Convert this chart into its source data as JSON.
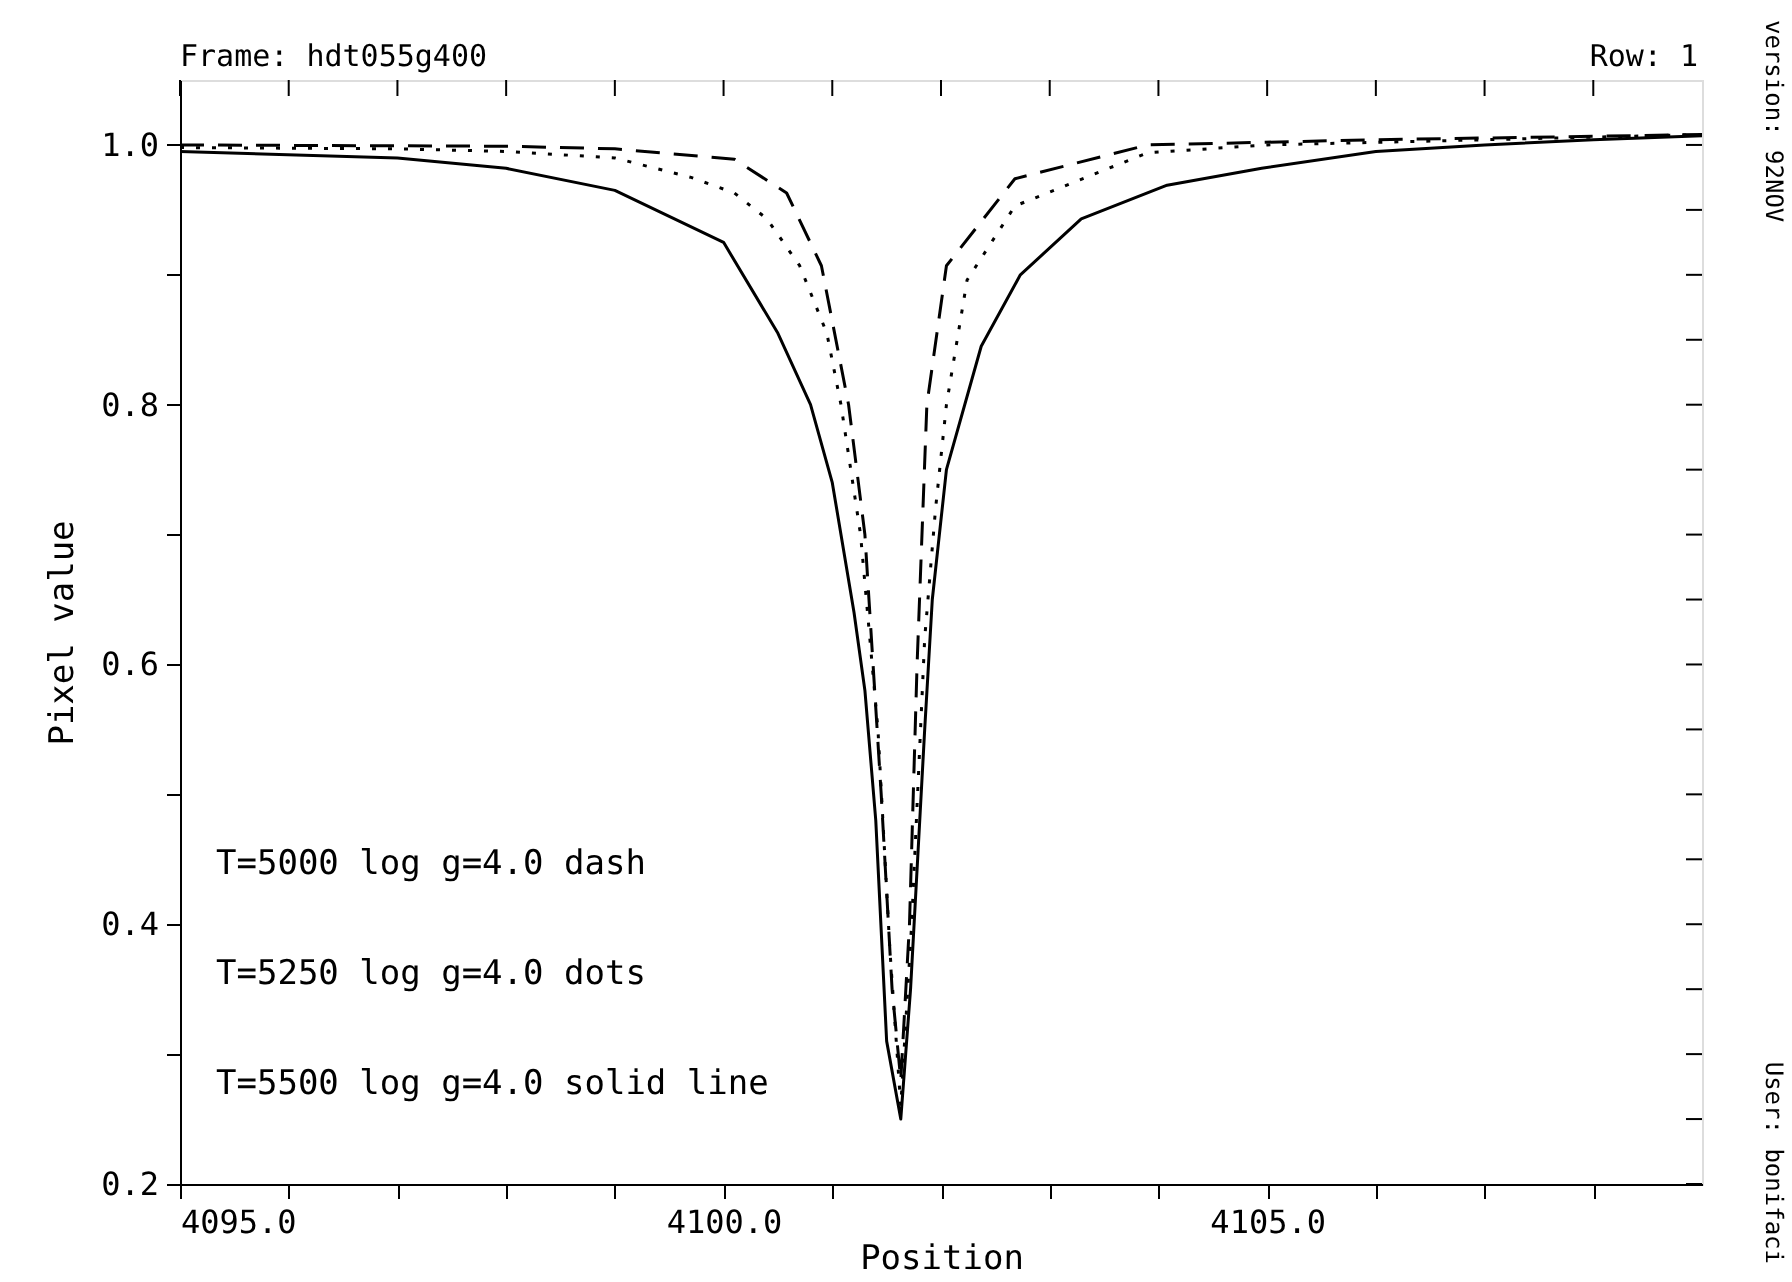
{
  "chart_data": {
    "type": "line",
    "title": "Frame: hdt055g400",
    "xlabel": "Position",
    "ylabel": "Pixel value",
    "xlim": [
      4095,
      4109
    ],
    "ylim": [
      0.2,
      1.05
    ],
    "xticks": [
      {
        "value": 4095,
        "label": "4095.0"
      },
      {
        "value": 4096,
        "label": null
      },
      {
        "value": 4097,
        "label": null
      },
      {
        "value": 4098,
        "label": null
      },
      {
        "value": 4099,
        "label": null
      },
      {
        "value": 4100,
        "label": "4100.0"
      },
      {
        "value": 4101,
        "label": null
      },
      {
        "value": 4102,
        "label": null
      },
      {
        "value": 4103,
        "label": null
      },
      {
        "value": 4104,
        "label": null
      },
      {
        "value": 4105,
        "label": "4105.0"
      },
      {
        "value": 4106,
        "label": null
      },
      {
        "value": 4107,
        "label": null
      },
      {
        "value": 4108,
        "label": null
      }
    ],
    "yticks": [
      {
        "value": 0.2,
        "label": "0.2"
      },
      {
        "value": 0.25,
        "label": null
      },
      {
        "value": 0.3,
        "label": null
      },
      {
        "value": 0.35,
        "label": null
      },
      {
        "value": 0.4,
        "label": "0.4"
      },
      {
        "value": 0.45,
        "label": null
      },
      {
        "value": 0.5,
        "label": null
      },
      {
        "value": 0.55,
        "label": null
      },
      {
        "value": 0.6,
        "label": "0.6"
      },
      {
        "value": 0.65,
        "label": null
      },
      {
        "value": 0.7,
        "label": null
      },
      {
        "value": 0.75,
        "label": null
      },
      {
        "value": 0.8,
        "label": "0.8"
      },
      {
        "value": 0.85,
        "label": null
      },
      {
        "value": 0.9,
        "label": null
      },
      {
        "value": 0.95,
        "label": null
      },
      {
        "value": 1.0,
        "label": "1.0"
      }
    ],
    "grid": false,
    "series": [
      {
        "color": "#000000",
        "line_style": "dashed",
        "x": [
          4095,
          4098,
          4099,
          4100.1,
          4100.58,
          4100.9,
          4101.15,
          4101.3,
          4101.45,
          4101.55,
          4101.63,
          4101.71,
          4101.78,
          4101.87,
          4102.05,
          4102.68,
          4103.9,
          4106,
          4109
        ],
        "values": [
          1.0,
          0.999,
          0.997,
          0.989,
          0.963,
          0.907,
          0.8,
          0.7,
          0.5,
          0.35,
          0.28,
          0.4,
          0.6,
          0.8,
          0.907,
          0.974,
          1.0,
          1.004,
          1.008
        ]
      },
      {
        "color": "#000000",
        "line_style": "dotted",
        "x": [
          4095,
          4097,
          4098,
          4099,
          4099.7,
          4100.1,
          4100.4,
          4100.7,
          4100.95,
          4101.08,
          4101.26,
          4101.42,
          4101.53,
          4101.63,
          4101.73,
          4101.85,
          4101.95,
          4102.05,
          4102.24,
          4102.68,
          4103.9,
          4105,
          4107,
          4109
        ],
        "values": [
          0.998,
          0.997,
          0.995,
          0.99,
          0.975,
          0.963,
          0.943,
          0.907,
          0.855,
          0.8,
          0.7,
          0.55,
          0.38,
          0.26,
          0.4,
          0.62,
          0.72,
          0.8,
          0.896,
          0.953,
          0.994,
          1.0,
          1.004,
          1.008
        ]
      },
      {
        "color": "#000000",
        "line_style": "solid",
        "x": [
          4095,
          4097,
          4098,
          4099,
          4099.5,
          4100,
          4100.5,
          4100.8,
          4101,
          4101.2,
          4101.3,
          4101.4,
          4101.5,
          4101.63,
          4101.72,
          4101.85,
          4101.92,
          4102.05,
          4102.37,
          4102.73,
          4103.29,
          4104.08,
          4104.95,
          4106,
          4107,
          4108,
          4109
        ],
        "values": [
          0.995,
          0.99,
          0.982,
          0.965,
          0.945,
          0.925,
          0.855,
          0.8,
          0.74,
          0.64,
          0.58,
          0.48,
          0.31,
          0.25,
          0.35,
          0.55,
          0.65,
          0.75,
          0.845,
          0.9,
          0.943,
          0.969,
          0.982,
          0.995,
          1.0,
          1.004,
          1.007
        ]
      }
    ],
    "annotations": [
      "T=5000 log g=4.0 dash",
      "T=5250 log g=4.0 dots",
      "T=5500 log g=4.0 solid line",
      "Row: 1",
      "version: 92NOV",
      "User: bonifaci"
    ]
  }
}
